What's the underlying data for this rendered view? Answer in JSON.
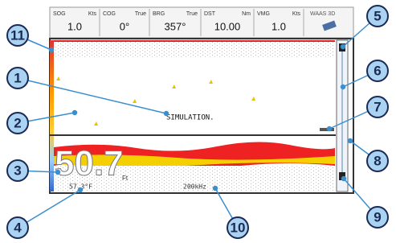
{
  "header": {
    "fields": [
      {
        "label": "SOG",
        "unit": "Kts",
        "value": "1.0"
      },
      {
        "label": "COG",
        "unit": "True",
        "value": "0°"
      },
      {
        "label": "BRG",
        "unit": "True",
        "value": "357°"
      },
      {
        "label": "DST",
        "unit": "Nm",
        "value": "10.00"
      },
      {
        "label": "VMG",
        "unit": "Kts",
        "value": "1.0"
      }
    ],
    "gps": "WAAS 3D"
  },
  "screen": {
    "simulation": "SIMULATION.",
    "depth": "50.7",
    "depth_unit": "Ft",
    "temperature": "57.3°F",
    "frequency": "200kHz"
  },
  "callouts": [
    "1",
    "2",
    "3",
    "4",
    "5",
    "6",
    "7",
    "8",
    "9",
    "10",
    "11"
  ]
}
